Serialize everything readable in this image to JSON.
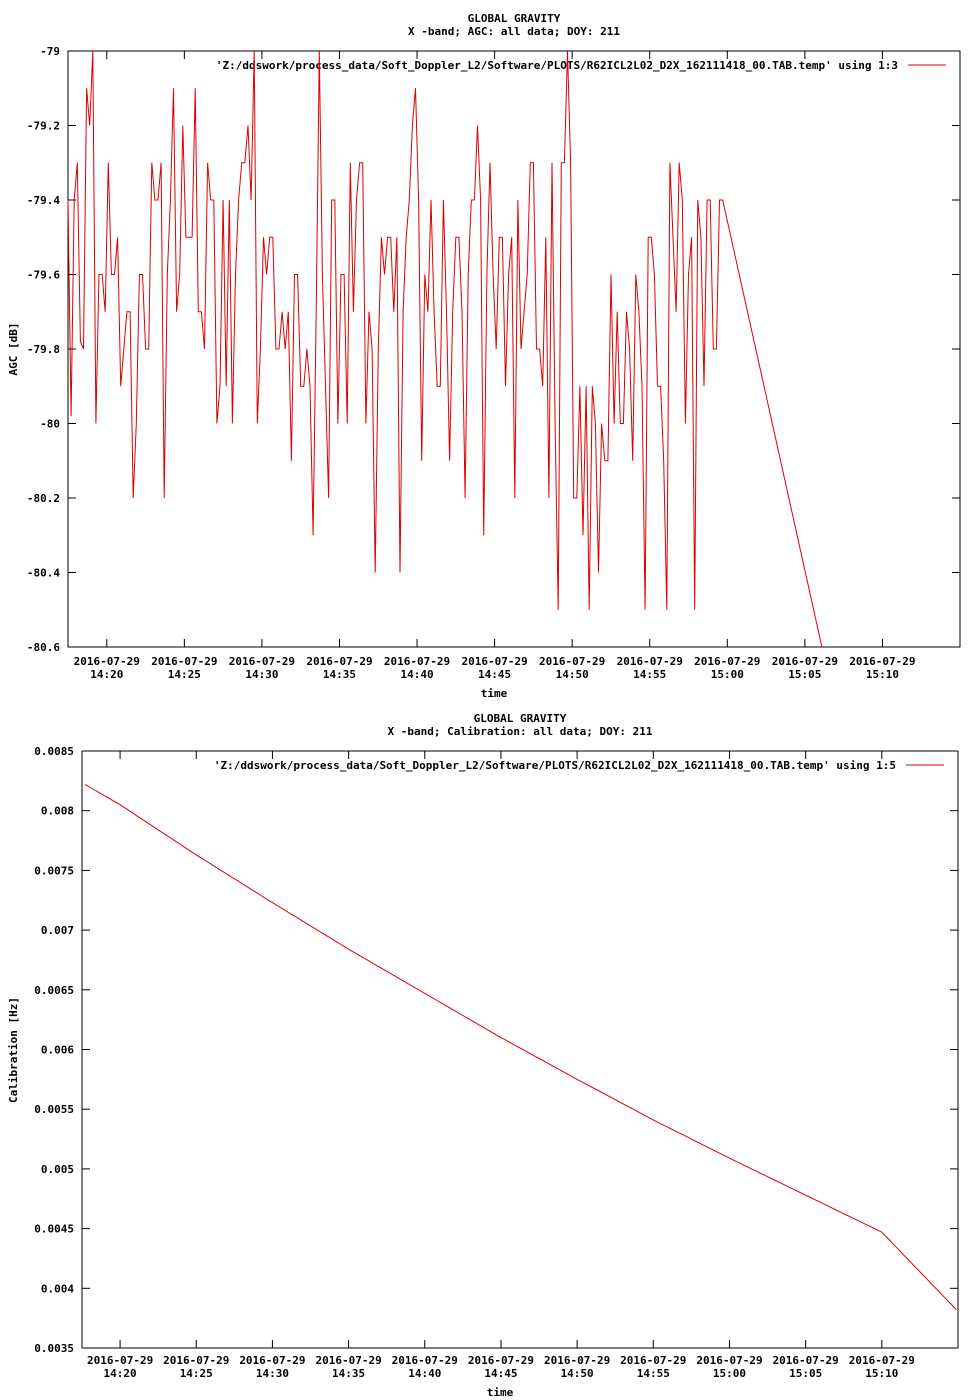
{
  "chart_data": [
    {
      "type": "line",
      "title": "GLOBAL GRAVITY",
      "subtitle": "X -band; AGC: all data; DOY: 211",
      "xlabel": "time",
      "ylabel": "AGC [dB]",
      "ylim": [
        -80.6,
        -79.0
      ],
      "xlim": [
        "2016-07-29 14:17:30",
        "2016-07-29 15:15:00"
      ],
      "y_ticks": [
        "-79",
        "-79.2",
        "-79.4",
        "-79.6",
        "-79.8",
        "-80",
        "-80.2",
        "-80.4",
        "-80.6"
      ],
      "y_tick_values": [
        -79.0,
        -79.2,
        -79.4,
        -79.6,
        -79.8,
        -80.0,
        -80.2,
        -80.4,
        -80.6
      ],
      "x_tick_dates": [
        "2016-07-29",
        "2016-07-29",
        "2016-07-29",
        "2016-07-29",
        "2016-07-29",
        "2016-07-29",
        "2016-07-29",
        "2016-07-29",
        "2016-07-29",
        "2016-07-29",
        "2016-07-29"
      ],
      "x_tick_times": [
        "14:20",
        "14:25",
        "14:30",
        "14:35",
        "14:40",
        "14:45",
        "14:50",
        "14:55",
        "15:00",
        "15:05",
        "15:10"
      ],
      "x_tick_minutes": [
        140,
        145,
        150,
        155,
        160,
        165,
        170,
        175,
        180,
        185,
        190
      ],
      "x_minutes_base": "2016-07-29 12:00",
      "legend_position": "top-right",
      "grid": false,
      "series": [
        {
          "name": "'Z:/ddswork/process_data/Soft_Doppler_L2/Software/PLOTS/R62ICL2L02_D2X_162111418_00.TAB.temp' using 1:3",
          "color": "#dd0000",
          "sample_interval_minutes": 0.2,
          "start_minute": 137.5,
          "values": [
            -79.4,
            -79.98,
            -79.4,
            -79.3,
            -79.78,
            -79.8,
            -79.1,
            -79.2,
            -79.0,
            -80.0,
            -79.6,
            -79.6,
            -79.7,
            -79.3,
            -79.6,
            -79.6,
            -79.5,
            -79.9,
            -79.8,
            -79.7,
            -79.7,
            -80.2,
            -80.0,
            -79.6,
            -79.6,
            -79.8,
            -79.8,
            -79.3,
            -79.4,
            -79.4,
            -79.3,
            -80.2,
            -79.6,
            -79.4,
            -79.1,
            -79.7,
            -79.6,
            -79.2,
            -79.5,
            -79.5,
            -79.5,
            -79.1,
            -79.7,
            -79.7,
            -79.8,
            -79.3,
            -79.4,
            -79.4,
            -80.0,
            -79.9,
            -79.4,
            -79.9,
            -79.4,
            -80.0,
            -79.6,
            -79.4,
            -79.3,
            -79.3,
            -79.2,
            -79.4,
            -79.0,
            -80.0,
            -79.8,
            -79.5,
            -79.6,
            -79.5,
            -79.5,
            -79.8,
            -79.8,
            -79.7,
            -79.8,
            -79.7,
            -80.1,
            -79.6,
            -79.6,
            -79.9,
            -79.9,
            -79.8,
            -79.9,
            -80.3,
            -79.7,
            -79.0,
            -79.6,
            -79.9,
            -80.2,
            -79.4,
            -79.4,
            -80.0,
            -79.6,
            -79.6,
            -80.0,
            -79.3,
            -79.7,
            -79.4,
            -79.3,
            -79.3,
            -80.0,
            -79.7,
            -79.8,
            -80.4,
            -79.8,
            -79.5,
            -79.6,
            -79.5,
            -79.5,
            -79.7,
            -79.5,
            -80.4,
            -79.7,
            -79.5,
            -79.4,
            -79.2,
            -79.1,
            -79.4,
            -80.1,
            -79.6,
            -79.7,
            -79.4,
            -79.7,
            -79.9,
            -79.9,
            -79.4,
            -79.7,
            -80.1,
            -79.7,
            -79.5,
            -79.5,
            -79.7,
            -80.2,
            -79.6,
            -79.4,
            -79.4,
            -79.2,
            -79.4,
            -80.3,
            -79.6,
            -79.3,
            -79.6,
            -79.8,
            -79.5,
            -79.5,
            -79.9,
            -79.6,
            -79.5,
            -80.2,
            -79.4,
            -79.8,
            -79.7,
            -79.6,
            -79.3,
            -79.3,
            -79.8,
            -79.8,
            -79.9,
            -79.5,
            -80.2,
            -79.3,
            -80.0,
            -80.5,
            -79.3,
            -79.3,
            -79.0,
            -79.3,
            -80.2,
            -80.2,
            -79.9,
            -80.3,
            -79.9,
            -80.5,
            -79.9,
            -80.0,
            -80.4,
            -80.0,
            -80.1,
            -80.1,
            -79.6,
            -80.0,
            -79.7,
            -80.0,
            -80.0,
            -79.7,
            -79.8,
            -80.1,
            -79.6,
            -79.7,
            -79.9,
            -80.5,
            -79.5,
            -79.5,
            -79.6,
            -79.9,
            -79.9,
            -80.1,
            -80.5,
            -79.3,
            -79.5,
            -79.7,
            -79.3,
            -79.4,
            -80.0,
            -79.6,
            -79.5,
            -80.5,
            -79.4,
            -79.5,
            -79.9,
            -79.4,
            -79.4,
            -79.8,
            -79.8,
            -79.4,
            -79.4
          ],
          "extreme_points": [
            {
              "t": 186.1,
              "v": -80.6
            }
          ]
        }
      ]
    },
    {
      "type": "line",
      "title": "GLOBAL GRAVITY",
      "subtitle": "X -band; Calibration: all data; DOY: 211",
      "xlabel": "time",
      "ylabel": "Calibration [Hz]",
      "ylim": [
        0.0035,
        0.0085
      ],
      "xlim": [
        "2016-07-29 14:17:30",
        "2016-07-29 15:15:00"
      ],
      "y_ticks": [
        "0.0085",
        "0.008",
        "0.0075",
        "0.007",
        "0.0065",
        "0.006",
        "0.0055",
        "0.005",
        "0.0045",
        "0.004",
        "0.0035"
      ],
      "y_tick_values": [
        0.0085,
        0.008,
        0.0075,
        0.007,
        0.0065,
        0.006,
        0.0055,
        0.005,
        0.0045,
        0.004,
        0.0035
      ],
      "x_tick_dates": [
        "2016-07-29",
        "2016-07-29",
        "2016-07-29",
        "2016-07-29",
        "2016-07-29",
        "2016-07-29",
        "2016-07-29",
        "2016-07-29",
        "2016-07-29",
        "2016-07-29",
        "2016-07-29"
      ],
      "x_tick_times": [
        "14:20",
        "14:25",
        "14:30",
        "14:35",
        "14:40",
        "14:45",
        "14:50",
        "14:55",
        "15:00",
        "15:05",
        "15:10"
      ],
      "x_tick_minutes": [
        140,
        145,
        150,
        155,
        160,
        165,
        170,
        175,
        180,
        185,
        190
      ],
      "x_minutes_base": "2016-07-29 12:00",
      "legend_position": "top-right",
      "grid": false,
      "series": [
        {
          "name": "'Z:/ddswork/process_data/Soft_Doppler_L2/Software/PLOTS/R62ICL2L02_D2X_162111418_00.TAB.temp' using 1:5",
          "color": "#dd0000",
          "points_minutes": [
            137.7,
            140,
            145,
            150,
            155,
            160,
            165,
            170,
            175,
            180,
            185,
            190,
            194.9
          ],
          "values": [
            0.00822,
            0.00805,
            0.00763,
            0.00723,
            0.00684,
            0.00647,
            0.0061,
            0.00575,
            0.00541,
            0.00509,
            0.00478,
            0.00447,
            0.00382
          ]
        }
      ]
    }
  ]
}
